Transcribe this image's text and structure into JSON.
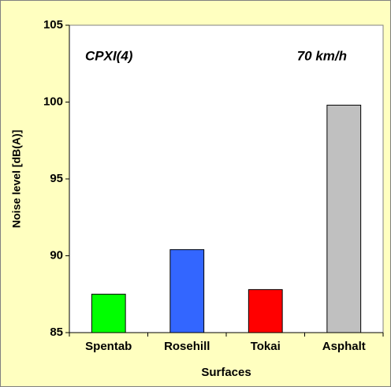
{
  "chart_data": {
    "type": "bar",
    "categories": [
      "Spentab",
      "Rosehill",
      "Tokai",
      "Asphalt"
    ],
    "values": [
      87.5,
      90.4,
      87.8,
      99.8
    ],
    "colors": [
      "#00ff00",
      "#3366ff",
      "#ff0000",
      "#c0c0c0"
    ],
    "x_label": "Surfaces",
    "y_label": "Noise level [dB(A)]",
    "annotations": [
      "CPXI(4)",
      "70 km/h"
    ],
    "ylim": [
      85,
      105
    ],
    "yticks": [
      85,
      90,
      95,
      100,
      105
    ],
    "grid": false
  }
}
